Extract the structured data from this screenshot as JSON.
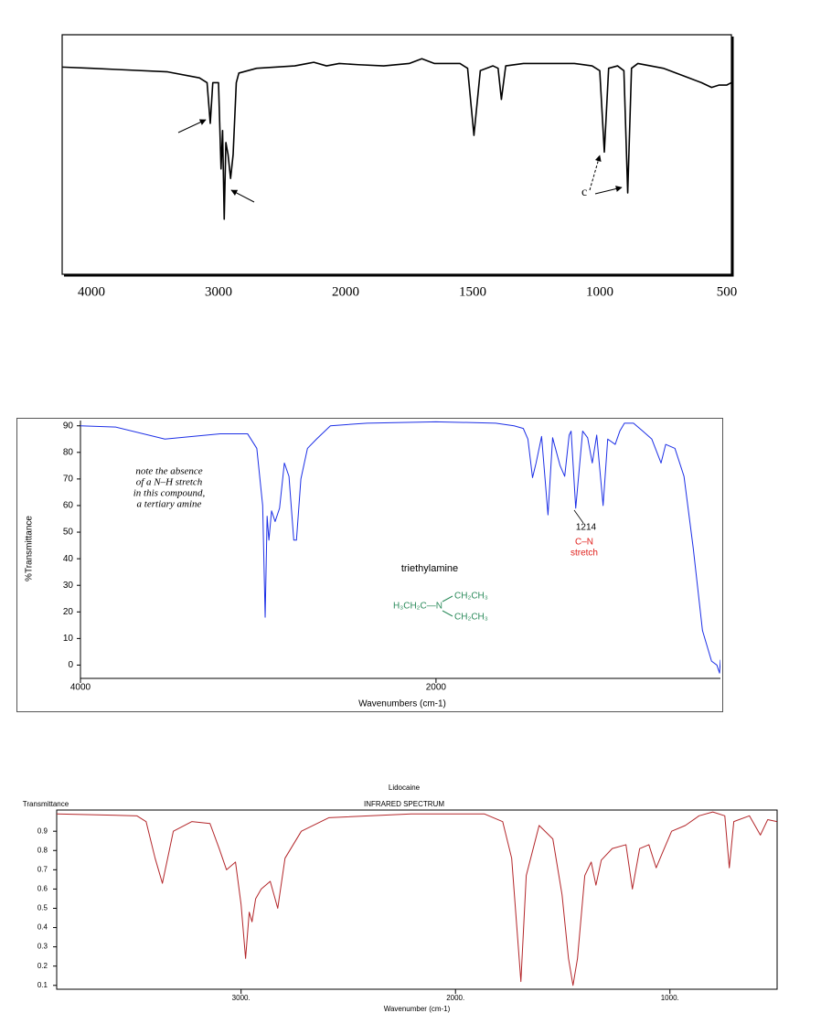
{
  "chart_data": [
    {
      "type": "line",
      "xscale": "segmented",
      "color": "#000000",
      "annotation": "c",
      "xlim": [
        4230,
        480
      ],
      "ylim": [
        0,
        100
      ],
      "xticks": [
        4000,
        3000,
        2000,
        1500,
        1000,
        500
      ],
      "x": [
        4230,
        4000,
        3800,
        3400,
        3150,
        3090,
        3065,
        3045,
        3000,
        2980,
        2968,
        2955,
        2942,
        2925,
        2905,
        2885,
        2860,
        2840,
        2700,
        2400,
        2300,
        2250,
        2150,
        2050,
        1950,
        1850,
        1750,
        1700,
        1650,
        1550,
        1520,
        1495,
        1470,
        1420,
        1400,
        1387,
        1370,
        1300,
        1100,
        1030,
        1000,
        982,
        965,
        930,
        905,
        890,
        875,
        850,
        750,
        700,
        650,
        600,
        560,
        530,
        500,
        480
      ],
      "values": [
        86.5,
        86,
        85.5,
        84.5,
        82,
        80,
        63,
        80,
        80,
        44,
        60,
        23,
        55,
        50,
        40,
        50,
        80,
        84,
        86,
        87,
        88,
        88.5,
        87,
        88,
        87.5,
        87,
        88,
        90,
        88,
        88,
        86,
        58,
        85,
        87,
        86,
        73,
        87,
        88,
        88,
        87,
        85,
        51,
        86,
        87,
        85,
        34,
        86,
        88,
        86,
        84,
        82,
        80,
        78,
        79,
        79,
        80
      ]
    },
    {
      "type": "line",
      "color": "#1c2fe6",
      "ylabel": "%Transmittance",
      "xlabel": "Wavenumbers (cm-1)",
      "note": [
        "note the absence",
        "of a N–H stretch",
        "in this compound,",
        "a tertiary amine"
      ],
      "peak_label": "1214",
      "band_label": [
        "C–N",
        "stretch"
      ],
      "compound": "triethylamine",
      "structure": [
        "H₃CH₂C—N",
        "CH₂CH₃",
        "CH₂CH₃"
      ],
      "xlim": [
        4000,
        400
      ],
      "ylim": [
        -5,
        93
      ],
      "xticks": [
        4000,
        2000
      ],
      "yticks": [
        0,
        10,
        20,
        30,
        40,
        50,
        60,
        70,
        80,
        90
      ],
      "x": [
        4000,
        3800,
        3525,
        3214,
        3060,
        3008,
        2975,
        2961,
        2950,
        2940,
        2925,
        2905,
        2880,
        2853,
        2827,
        2800,
        2785,
        2760,
        2723,
        2672,
        2594,
        2388,
        2000,
        1664,
        1561,
        1509,
        1483,
        1457,
        1437,
        1406,
        1370,
        1344,
        1302,
        1276,
        1251,
        1240,
        1214,
        1175,
        1147,
        1121,
        1096,
        1060,
        1034,
        992,
        966,
        940,
        889,
        837,
        786,
        734,
        708,
        656,
        605,
        553,
        501,
        450,
        420,
        405,
        400
      ],
      "values": [
        90,
        89.5,
        85,
        87,
        87,
        81.5,
        60,
        18,
        56,
        47,
        58,
        54,
        59,
        76,
        71,
        47,
        47,
        70,
        81.5,
        85,
        90,
        91,
        91.5,
        91,
        90,
        89,
        85,
        70.5,
        76,
        86,
        56.5,
        85.5,
        75,
        71,
        86.5,
        88,
        59,
        88,
        85.5,
        76,
        86.5,
        60,
        85,
        83,
        88,
        91,
        91,
        88,
        85,
        76,
        83,
        81.5,
        71,
        44,
        13,
        1.5,
        0,
        -3,
        2
      ]
    },
    {
      "type": "line",
      "color": "#b3262a",
      "title": "Lidocaine",
      "subtitle": "INFRARED SPECTRUM",
      "ylabel": "Transmittance",
      "xlabel": "Wavenumber (cm-1)",
      "xlim": [
        3860,
        500
      ],
      "ylim": [
        0.08,
        1.01
      ],
      "xticks": [
        {
          "value": 3000,
          "label": "3000."
        },
        {
          "value": 2000,
          "label": "2000."
        },
        {
          "value": 1000,
          "label": "1000."
        }
      ],
      "yticks": [
        0.1,
        0.2,
        0.3,
        0.4,
        0.5,
        0.6,
        0.7,
        0.8,
        0.9
      ],
      "x": [
        3860,
        3486,
        3443,
        3401,
        3367,
        3316,
        3230,
        3145,
        3102,
        3068,
        3026,
        3000,
        2979,
        2962,
        2949,
        2932,
        2906,
        2864,
        2829,
        2795,
        2719,
        2591,
        2207,
        1866,
        1780,
        1738,
        1695,
        1670,
        1610,
        1546,
        1503,
        1473,
        1452,
        1431,
        1397,
        1367,
        1345,
        1320,
        1269,
        1205,
        1175,
        1141,
        1098,
        1064,
        1034,
        992,
        928,
        864,
        800,
        744,
        723,
        702,
        629,
        578,
        544,
        501
      ],
      "values": [
        0.99,
        0.98,
        0.95,
        0.76,
        0.63,
        0.9,
        0.95,
        0.94,
        0.81,
        0.7,
        0.74,
        0.52,
        0.24,
        0.48,
        0.43,
        0.55,
        0.6,
        0.64,
        0.5,
        0.76,
        0.9,
        0.97,
        0.99,
        0.99,
        0.95,
        0.76,
        0.12,
        0.67,
        0.93,
        0.86,
        0.57,
        0.24,
        0.1,
        0.24,
        0.67,
        0.74,
        0.62,
        0.75,
        0.81,
        0.83,
        0.6,
        0.81,
        0.83,
        0.71,
        0.79,
        0.9,
        0.93,
        0.98,
        1,
        0.98,
        0.71,
        0.95,
        0.98,
        0.88,
        0.96,
        0.95
      ]
    }
  ]
}
